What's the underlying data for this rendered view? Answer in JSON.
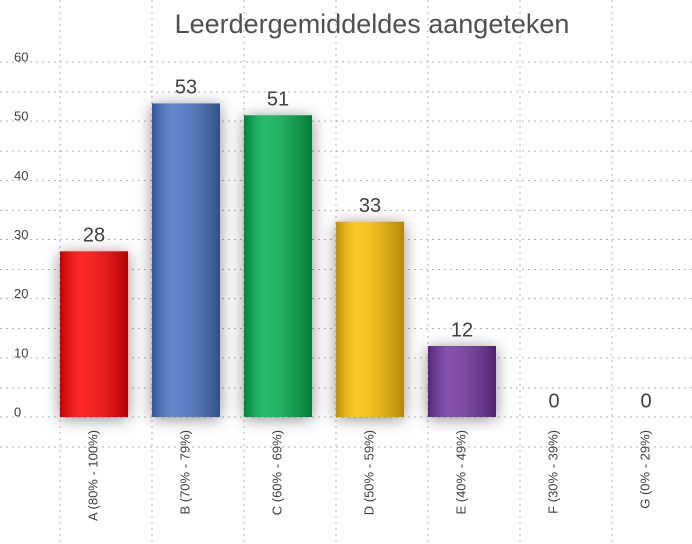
{
  "chart_data": {
    "type": "bar",
    "title": "Leerdergemiddeldes aangeteken",
    "categories": [
      "A (80% - 100%)",
      "B (70% - 79%)",
      "C (60% - 69%)",
      "D (50% - 59%)",
      "E (40% - 49%)",
      "F (30% - 39%)",
      "G (0% - 29%)"
    ],
    "values": [
      28,
      53,
      51,
      33,
      12,
      0,
      0
    ],
    "colors": [
      "#ff0000",
      "#4472c4",
      "#00b050",
      "#ffc000",
      "#7030a0",
      "#808080",
      "#808080"
    ],
    "ylim": [
      0,
      60
    ],
    "yticks": [
      0,
      10,
      20,
      30,
      40,
      50,
      60
    ],
    "grid": true
  }
}
